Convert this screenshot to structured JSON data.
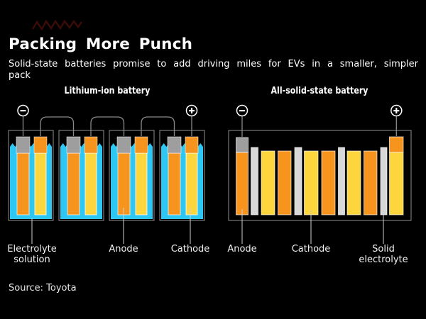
{
  "header": {
    "title": "Packing More Punch",
    "subtitle_line1": "Solid-state batteries promise to add driving miles for EVs in a smaller, simpler",
    "subtitle_line2": "pack"
  },
  "panels": {
    "left": {
      "title": "Lithium-ion battery",
      "cell_count": 4,
      "labels": [
        {
          "line1": "Electrolyte",
          "line2": "solution"
        },
        {
          "line1": "Anode",
          "line2": ""
        },
        {
          "line1": "Cathode",
          "line2": ""
        }
      ]
    },
    "right": {
      "title": "All-solid-state battery",
      "bar_sequence": [
        "anode",
        "electrolyte",
        "cathode",
        "anode",
        "electrolyte",
        "cathode",
        "anode",
        "electrolyte",
        "cathode",
        "anode",
        "electrolyte",
        "cathode"
      ],
      "labels": [
        {
          "line1": "Anode",
          "line2": ""
        },
        {
          "line1": "Cathode",
          "line2": ""
        },
        {
          "line1": "Solid",
          "line2": "electrolyte"
        }
      ]
    }
  },
  "terminals": {
    "negative_label": "−",
    "positive_label": "+"
  },
  "source": "Source: Toyota",
  "colors": {
    "background": "#000000",
    "text": "#ffffff",
    "anode_tab": "#9e9e9e",
    "anode": "#f7941e",
    "cathode_tab": "#f7941e",
    "cathode": "#fdd53c",
    "liquid_electrolyte": "#2ec6f2",
    "solid_electrolyte": "#d8d8d8",
    "wire": "#8a8a8a",
    "outline": "#909090",
    "leader": "#d0d0d0",
    "terminal": "#ffffff",
    "scribble": "#3a0c08"
  }
}
